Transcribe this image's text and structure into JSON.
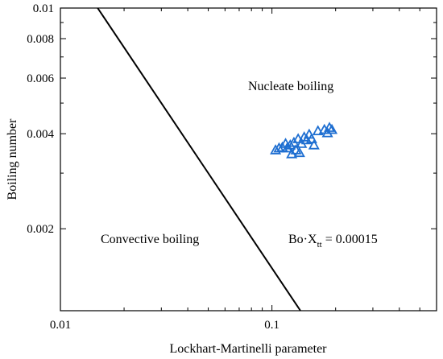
{
  "chart_data": {
    "type": "scatter",
    "xlabel": "Lockhart-Martinelli parameter",
    "ylabel": "Boiling number",
    "xscale": "log",
    "yscale": "log",
    "xlim": [
      0.01,
      0.6
    ],
    "ylim": [
      0.0011,
      0.01
    ],
    "x_ticks": [
      0.01,
      0.1
    ],
    "x_tick_labels": [
      "0.01",
      "0.1"
    ],
    "y_ticks": [
      0.002,
      0.004,
      0.006,
      0.008,
      0.01
    ],
    "y_tick_labels": [
      "0.002",
      "0.004",
      "0.006",
      "0.008",
      "0.01"
    ],
    "grid": false,
    "marker": "triangle-open",
    "marker_color": "#1f6fd1",
    "line_color": "#000000",
    "boundary": {
      "label_main": "Bo·X",
      "label_sub": "tt",
      "label_value": " = 0.00015",
      "constant": 0.00015,
      "x": [
        0.015,
        0.15
      ],
      "y": [
        0.01,
        0.001
      ]
    },
    "regions": [
      {
        "label": "Nucleate boiling"
      },
      {
        "label": "Convective boiling"
      }
    ],
    "points": [
      {
        "x": 0.104,
        "y": 0.00355
      },
      {
        "x": 0.108,
        "y": 0.0036
      },
      {
        "x": 0.112,
        "y": 0.00362
      },
      {
        "x": 0.116,
        "y": 0.00372
      },
      {
        "x": 0.118,
        "y": 0.0036
      },
      {
        "x": 0.122,
        "y": 0.00368
      },
      {
        "x": 0.124,
        "y": 0.00345
      },
      {
        "x": 0.127,
        "y": 0.00375
      },
      {
        "x": 0.13,
        "y": 0.00355
      },
      {
        "x": 0.133,
        "y": 0.00385
      },
      {
        "x": 0.135,
        "y": 0.00348
      },
      {
        "x": 0.138,
        "y": 0.00372
      },
      {
        "x": 0.142,
        "y": 0.0039
      },
      {
        "x": 0.146,
        "y": 0.00382
      },
      {
        "x": 0.15,
        "y": 0.00398
      },
      {
        "x": 0.154,
        "y": 0.00385
      },
      {
        "x": 0.158,
        "y": 0.00368
      },
      {
        "x": 0.165,
        "y": 0.00408
      },
      {
        "x": 0.177,
        "y": 0.00412
      },
      {
        "x": 0.183,
        "y": 0.00402
      },
      {
        "x": 0.187,
        "y": 0.00418
      },
      {
        "x": 0.192,
        "y": 0.00412
      }
    ]
  }
}
